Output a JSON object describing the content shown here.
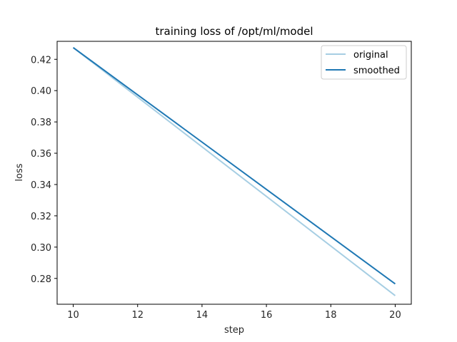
{
  "chart_data": {
    "type": "line",
    "title": "training loss of /opt/ml/model",
    "xlabel": "step",
    "ylabel": "loss",
    "xlim": [
      9.5,
      20.5
    ],
    "ylim": [
      0.2635,
      0.4315
    ],
    "xticks": [
      10,
      12,
      14,
      16,
      18,
      20
    ],
    "xtick_labels": [
      "10",
      "12",
      "14",
      "16",
      "18",
      "20"
    ],
    "yticks": [
      0.28,
      0.3,
      0.32,
      0.34,
      0.36,
      0.38,
      0.4,
      0.42
    ],
    "ytick_labels": [
      "0.28",
      "0.30",
      "0.32",
      "0.34",
      "0.36",
      "0.38",
      "0.40",
      "0.42"
    ],
    "grid": false,
    "legend_position": "upper right",
    "x": [
      10,
      20
    ],
    "series": [
      {
        "name": "original",
        "color": "#a6cee3",
        "values": [
          0.4275,
          0.269
        ]
      },
      {
        "name": "smoothed",
        "color": "#1f78b4",
        "values": [
          0.4275,
          0.2765
        ]
      }
    ]
  }
}
